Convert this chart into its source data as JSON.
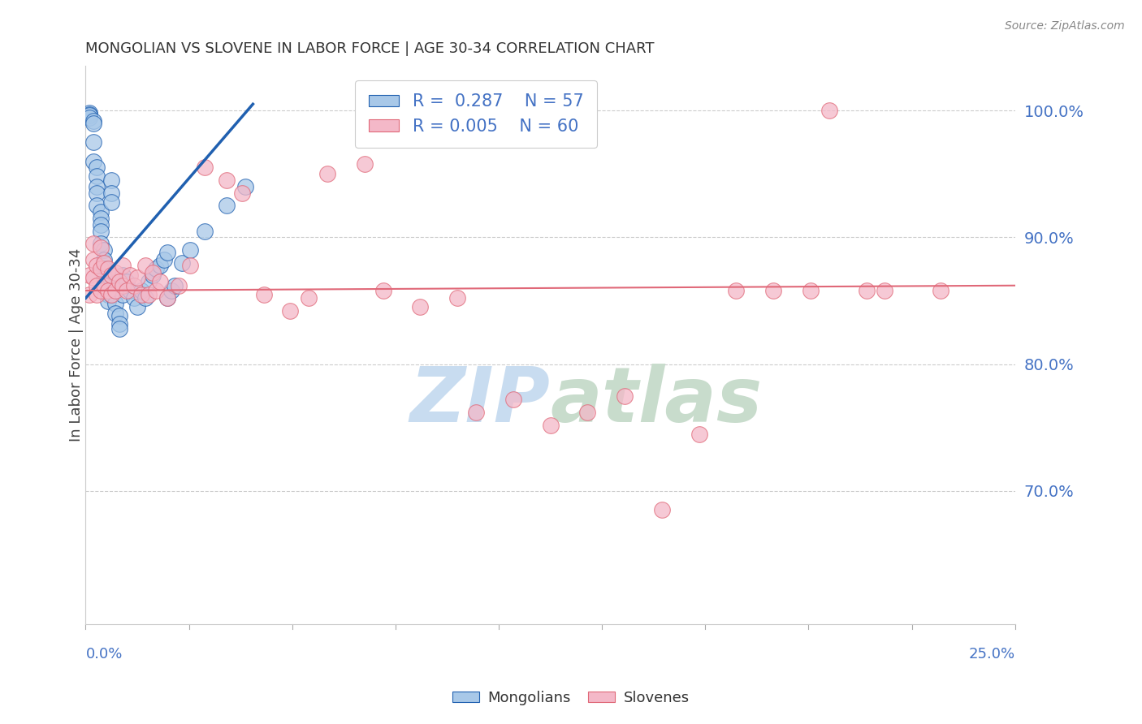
{
  "title": "MONGOLIAN VS SLOVENE IN LABOR FORCE | AGE 30-34 CORRELATION CHART",
  "source": "Source: ZipAtlas.com",
  "ylabel": "In Labor Force | Age 30-34",
  "ylabel_ticks": [
    "70.0%",
    "80.0%",
    "90.0%",
    "100.0%"
  ],
  "ylabel_tick_vals": [
    0.7,
    0.8,
    0.9,
    1.0
  ],
  "xmin": 0.0,
  "xmax": 0.25,
  "ymin": 0.595,
  "ymax": 1.035,
  "blue_color": "#A8C8E8",
  "pink_color": "#F4B8C8",
  "trend_blue_color": "#2060B0",
  "trend_pink_color": "#E06878",
  "trend_blue_x0": 0.0,
  "trend_blue_y0": 0.852,
  "trend_blue_x1": 0.045,
  "trend_blue_y1": 1.005,
  "trend_pink_x0": 0.0,
  "trend_pink_y0": 0.858,
  "trend_pink_x1": 0.25,
  "trend_pink_y1": 0.862,
  "watermark_zip_color": "#C8DCF0",
  "watermark_atlas_color": "#C8DCCC",
  "background_color": "#FFFFFF",
  "mongolian_x": [
    0.001,
    0.001,
    0.001,
    0.001,
    0.002,
    0.002,
    0.002,
    0.002,
    0.003,
    0.003,
    0.003,
    0.003,
    0.003,
    0.004,
    0.004,
    0.004,
    0.004,
    0.004,
    0.005,
    0.005,
    0.005,
    0.005,
    0.006,
    0.006,
    0.006,
    0.007,
    0.007,
    0.007,
    0.007,
    0.008,
    0.008,
    0.009,
    0.009,
    0.009,
    0.01,
    0.01,
    0.01,
    0.011,
    0.012,
    0.013,
    0.014,
    0.015,
    0.016,
    0.017,
    0.018,
    0.019,
    0.02,
    0.021,
    0.022,
    0.022,
    0.023,
    0.024,
    0.026,
    0.028,
    0.032,
    0.038,
    0.043
  ],
  "mongolian_y": [
    0.998,
    0.997,
    0.996,
    0.994,
    0.992,
    0.99,
    0.975,
    0.96,
    0.955,
    0.948,
    0.94,
    0.935,
    0.925,
    0.92,
    0.915,
    0.91,
    0.905,
    0.895,
    0.89,
    0.882,
    0.875,
    0.868,
    0.862,
    0.855,
    0.85,
    0.945,
    0.935,
    0.928,
    0.855,
    0.848,
    0.84,
    0.838,
    0.832,
    0.828,
    0.87,
    0.862,
    0.855,
    0.865,
    0.858,
    0.852,
    0.845,
    0.858,
    0.852,
    0.865,
    0.87,
    0.875,
    0.878,
    0.882,
    0.888,
    0.852,
    0.858,
    0.862,
    0.88,
    0.89,
    0.905,
    0.925,
    0.94
  ],
  "slovene_x": [
    0.001,
    0.001,
    0.002,
    0.002,
    0.002,
    0.003,
    0.003,
    0.003,
    0.004,
    0.004,
    0.004,
    0.005,
    0.005,
    0.006,
    0.006,
    0.007,
    0.007,
    0.008,
    0.008,
    0.009,
    0.01,
    0.01,
    0.011,
    0.012,
    0.013,
    0.014,
    0.015,
    0.016,
    0.017,
    0.018,
    0.019,
    0.02,
    0.022,
    0.025,
    0.028,
    0.032,
    0.038,
    0.042,
    0.048,
    0.055,
    0.06,
    0.065,
    0.075,
    0.08,
    0.09,
    0.1,
    0.105,
    0.115,
    0.125,
    0.135,
    0.145,
    0.155,
    0.165,
    0.175,
    0.185,
    0.195,
    0.2,
    0.21,
    0.215,
    0.23
  ],
  "slovene_y": [
    0.87,
    0.855,
    0.895,
    0.882,
    0.868,
    0.878,
    0.862,
    0.855,
    0.892,
    0.875,
    0.858,
    0.88,
    0.862,
    0.875,
    0.858,
    0.87,
    0.855,
    0.872,
    0.858,
    0.865,
    0.878,
    0.862,
    0.858,
    0.87,
    0.862,
    0.868,
    0.855,
    0.878,
    0.855,
    0.872,
    0.858,
    0.865,
    0.852,
    0.862,
    0.878,
    0.955,
    0.945,
    0.935,
    0.855,
    0.842,
    0.852,
    0.95,
    0.958,
    0.858,
    0.845,
    0.852,
    0.762,
    0.772,
    0.752,
    0.762,
    0.775,
    0.685,
    0.745,
    0.858,
    0.858,
    0.858,
    1.0,
    0.858,
    0.858,
    0.858
  ]
}
